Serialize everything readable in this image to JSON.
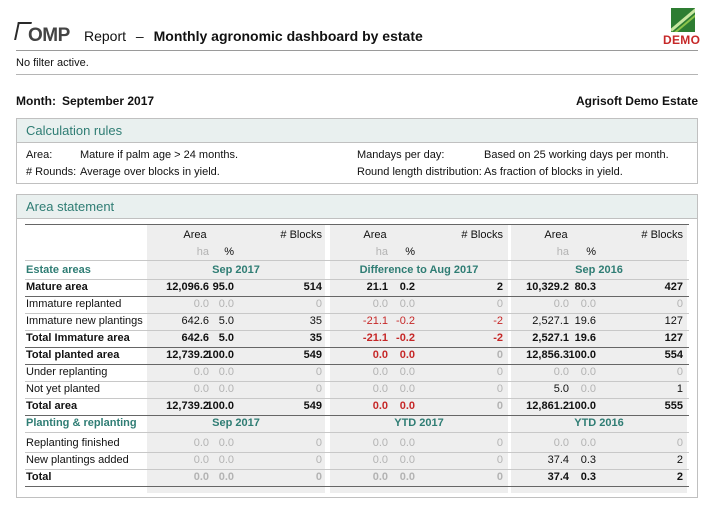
{
  "header": {
    "logo_text": "OMP",
    "title": "Report",
    "separator": "–",
    "subtitle": "Monthly agronomic dashboard by estate",
    "demo_label": "DEMO"
  },
  "filter_text": "No filter active.",
  "month_label": "Month:",
  "month_value": "September 2017",
  "estate_name": "Agrisoft Demo Estate",
  "calculation_rules": {
    "title": "Calculation rules",
    "area_label": "Area:",
    "area_value": "Mature if palm age > 24 months.",
    "rounds_label": "# Rounds:",
    "rounds_value": "Average over blocks in yield.",
    "mandays_label": "Mandays per day:",
    "mandays_value": "Based on 25 working days per month.",
    "round_length_label": "Round length distribution:",
    "round_length_value": "As fraction of blocks in yield."
  },
  "area_statement": {
    "title": "Area statement",
    "col_groups": [
      {
        "area": "Area",
        "blocks": "# Blocks",
        "ha": "ha",
        "pct": "%"
      },
      {
        "area": "Area",
        "blocks": "# Blocks",
        "ha": "ha",
        "pct": "%"
      },
      {
        "area": "Area",
        "blocks": "# Blocks",
        "ha": "ha",
        "pct": "%"
      }
    ],
    "section_estate": {
      "label": "Estate areas",
      "headers": [
        "Sep 2017",
        "Difference to Aug 2017",
        "Sep 2016"
      ]
    },
    "estate_rows": [
      {
        "label": "Mature area",
        "bold": true,
        "g": [
          [
            "12,096.6",
            "95.0",
            "514"
          ],
          [
            "21.1",
            "0.2",
            "2"
          ],
          [
            "10,329.2",
            "80.3",
            "427"
          ]
        ]
      },
      {
        "label": "Immature replanted",
        "bold": false,
        "g": [
          [
            "0.0",
            "0.0",
            "0"
          ],
          [
            "0.0",
            "0.0",
            "0"
          ],
          [
            "0.0",
            "0.0",
            "0"
          ]
        ]
      },
      {
        "label": "Immature new plantings",
        "bold": false,
        "g": [
          [
            "642.6",
            "5.0",
            "35"
          ],
          [
            "-21.1",
            "-0.2",
            "-2"
          ],
          [
            "2,527.1",
            "19.6",
            "127"
          ]
        ]
      },
      {
        "label": "Total Immature area",
        "bold": true,
        "g": [
          [
            "642.6",
            "5.0",
            "35"
          ],
          [
            "-21.1",
            "-0.2",
            "-2"
          ],
          [
            "2,527.1",
            "19.6",
            "127"
          ]
        ]
      },
      {
        "label": "Total planted area",
        "bold": true,
        "g": [
          [
            "12,739.2",
            "100.0",
            "549"
          ],
          [
            "0.0",
            "0.0",
            "0"
          ],
          [
            "12,856.3",
            "100.0",
            "554"
          ]
        ]
      },
      {
        "label": "Under replanting",
        "bold": false,
        "g": [
          [
            "0.0",
            "0.0",
            "0"
          ],
          [
            "0.0",
            "0.0",
            "0"
          ],
          [
            "0.0",
            "0.0",
            "0"
          ]
        ]
      },
      {
        "label": "Not yet planted",
        "bold": false,
        "g": [
          [
            "0.0",
            "0.0",
            "0"
          ],
          [
            "0.0",
            "0.0",
            "0"
          ],
          [
            "5.0",
            "0.0",
            "1"
          ]
        ]
      },
      {
        "label": "Total area",
        "bold": true,
        "g": [
          [
            "12,739.2",
            "100.0",
            "549"
          ],
          [
            "0.0",
            "0.0",
            "0"
          ],
          [
            "12,861.2",
            "100.0",
            "555"
          ]
        ]
      }
    ],
    "section_planting": {
      "label": "Planting & replanting",
      "headers": [
        "Sep 2017",
        "YTD 2017",
        "YTD 2016"
      ]
    },
    "planting_rows": [
      {
        "label": "Replanting finished",
        "bold": false,
        "g": [
          [
            "0.0",
            "0.0",
            "0"
          ],
          [
            "0.0",
            "0.0",
            "0"
          ],
          [
            "0.0",
            "0.0",
            "0"
          ]
        ]
      },
      {
        "label": "New plantings added",
        "bold": false,
        "g": [
          [
            "0.0",
            "0.0",
            "0"
          ],
          [
            "0.0",
            "0.0",
            "0"
          ],
          [
            "37.4",
            "0.3",
            "2"
          ]
        ]
      },
      {
        "label": "Total",
        "bold": true,
        "g": [
          [
            "0.0",
            "0.0",
            "0"
          ],
          [
            "0.0",
            "0.0",
            "0"
          ],
          [
            "37.4",
            "0.3",
            "2"
          ]
        ]
      }
    ]
  }
}
